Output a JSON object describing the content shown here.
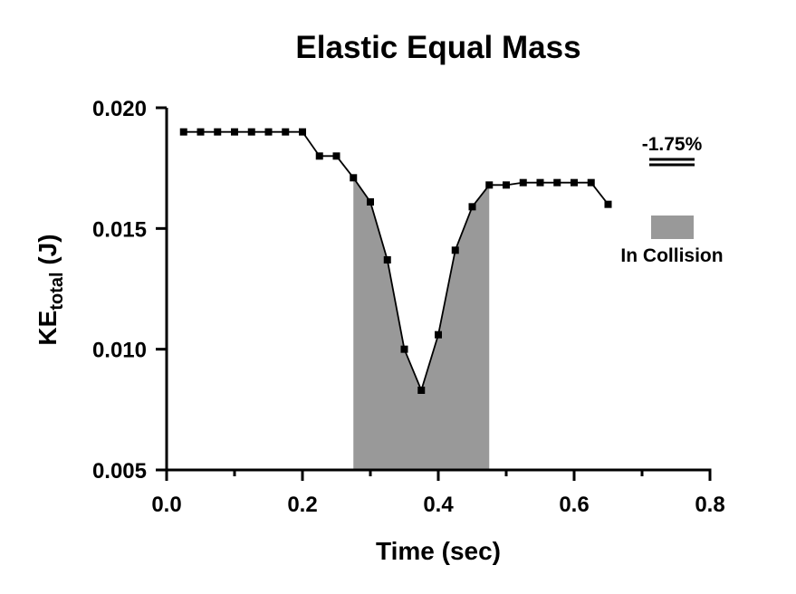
{
  "chart_data": {
    "type": "line",
    "title": "Elastic Equal Mass",
    "xlabel": "Time (sec)",
    "ylabel_main": "KE",
    "ylabel_sub": "total",
    "ylabel_unit": " (J)",
    "xlim": [
      0.0,
      0.8
    ],
    "ylim": [
      0.005,
      0.02
    ],
    "xticks": [
      "0.0",
      "0.2",
      "0.4",
      "0.6",
      "0.8"
    ],
    "xtick_values": [
      0.0,
      0.2,
      0.4,
      0.6,
      0.8
    ],
    "yticks": [
      "0.005",
      "0.010",
      "0.015",
      "0.020"
    ],
    "ytick_values": [
      0.005,
      0.01,
      0.015,
      0.02
    ],
    "grid": false,
    "collision_region": {
      "x_start": 0.275,
      "x_end": 0.475,
      "color": "#999999"
    },
    "series": [
      {
        "color": "#000000",
        "marker": "square",
        "x": [
          0.025,
          0.05,
          0.075,
          0.1,
          0.125,
          0.15,
          0.175,
          0.2,
          0.225,
          0.25,
          0.275,
          0.3,
          0.325,
          0.35,
          0.375,
          0.4,
          0.425,
          0.45,
          0.475,
          0.5,
          0.525,
          0.55,
          0.575,
          0.6,
          0.625,
          0.65
        ],
        "y": [
          0.019,
          0.019,
          0.019,
          0.019,
          0.019,
          0.019,
          0.019,
          0.019,
          0.018,
          0.018,
          0.0171,
          0.0161,
          0.0137,
          0.01,
          0.0083,
          0.0106,
          0.0141,
          0.0159,
          0.0168,
          0.0168,
          0.0169,
          0.0169,
          0.0169,
          0.0169,
          0.0169,
          0.016
        ]
      }
    ],
    "legend": {
      "percent_label": "-1.75%",
      "collision_label": "In Collision"
    }
  }
}
